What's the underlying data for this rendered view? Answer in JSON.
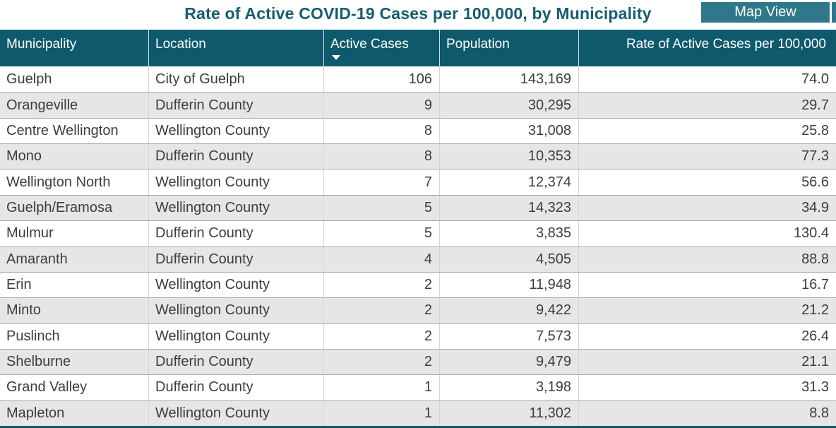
{
  "title": "Rate of Active COVID-19 Cases per 100,000, by Municipality",
  "map_view_button": "Map View",
  "colors": {
    "header_bg": "#0e5a6c",
    "title_text": "#155e70",
    "button_bg": "#2e7889",
    "alt_row_bg": "#e6e6e6",
    "row_border": "#ababab",
    "header_text": "#ffffff",
    "body_text": "#3d3d3d"
  },
  "table": {
    "columns": [
      {
        "key": "municipality",
        "label": "Municipality",
        "align": "left"
      },
      {
        "key": "location",
        "label": "Location",
        "align": "left"
      },
      {
        "key": "active-cases",
        "label": "Active Cases",
        "align": "right",
        "sort_indicator": "descending"
      },
      {
        "key": "population",
        "label": "Population",
        "align": "right"
      },
      {
        "key": "rate",
        "label": "Rate of Active Cases per 100,000",
        "align": "right"
      }
    ],
    "rows": [
      [
        "Guelph",
        "City of Guelph",
        "106",
        "143,169",
        "74.0"
      ],
      [
        "Orangeville",
        "Dufferin County",
        "9",
        "30,295",
        "29.7"
      ],
      [
        "Centre Wellington",
        "Wellington County",
        "8",
        "31,008",
        "25.8"
      ],
      [
        "Mono",
        "Dufferin County",
        "8",
        "10,353",
        "77.3"
      ],
      [
        "Wellington North",
        "Wellington County",
        "7",
        "12,374",
        "56.6"
      ],
      [
        "Guelph/Eramosa",
        "Wellington County",
        "5",
        "14,323",
        "34.9"
      ],
      [
        "Mulmur",
        "Dufferin County",
        "5",
        "3,835",
        "130.4"
      ],
      [
        "Amaranth",
        "Dufferin County",
        "4",
        "4,505",
        "88.8"
      ],
      [
        "Erin",
        "Wellington County",
        "2",
        "11,948",
        "16.7"
      ],
      [
        "Minto",
        "Wellington County",
        "2",
        "9,422",
        "21.2"
      ],
      [
        "Puslinch",
        "Wellington County",
        "2",
        "7,573",
        "26.4"
      ],
      [
        "Shelburne",
        "Dufferin County",
        "2",
        "9,479",
        "21.1"
      ],
      [
        "Grand Valley",
        "Dufferin County",
        "1",
        "3,198",
        "31.3"
      ],
      [
        "Mapleton",
        "Wellington County",
        "1",
        "11,302",
        "8.8"
      ]
    ]
  },
  "chart_data": {
    "type": "table",
    "title": "Rate of Active COVID-19 Cases per 100,000, by Municipality",
    "columns": [
      "Municipality",
      "Location",
      "Active Cases",
      "Population",
      "Rate of Active Cases per 100,000"
    ],
    "rows": [
      [
        "Guelph",
        "City of Guelph",
        106,
        143169,
        74.0
      ],
      [
        "Orangeville",
        "Dufferin County",
        9,
        30295,
        29.7
      ],
      [
        "Centre Wellington",
        "Wellington County",
        8,
        31008,
        25.8
      ],
      [
        "Mono",
        "Dufferin County",
        8,
        10353,
        77.3
      ],
      [
        "Wellington North",
        "Wellington County",
        7,
        12374,
        56.6
      ],
      [
        "Guelph/Eramosa",
        "Wellington County",
        5,
        14323,
        34.9
      ],
      [
        "Mulmur",
        "Dufferin County",
        5,
        3835,
        130.4
      ],
      [
        "Amaranth",
        "Dufferin County",
        4,
        4505,
        88.8
      ],
      [
        "Erin",
        "Wellington County",
        2,
        11948,
        16.7
      ],
      [
        "Minto",
        "Wellington County",
        2,
        9422,
        21.2
      ],
      [
        "Puslinch",
        "Wellington County",
        2,
        7573,
        26.4
      ],
      [
        "Shelburne",
        "Dufferin County",
        2,
        9479,
        21.1
      ],
      [
        "Grand Valley",
        "Dufferin County",
        1,
        3198,
        31.3
      ],
      [
        "Mapleton",
        "Wellington County",
        1,
        11302,
        8.8
      ]
    ],
    "sort": {
      "column": "Active Cases",
      "direction": "descending"
    },
    "alternating_row_shading": true
  }
}
